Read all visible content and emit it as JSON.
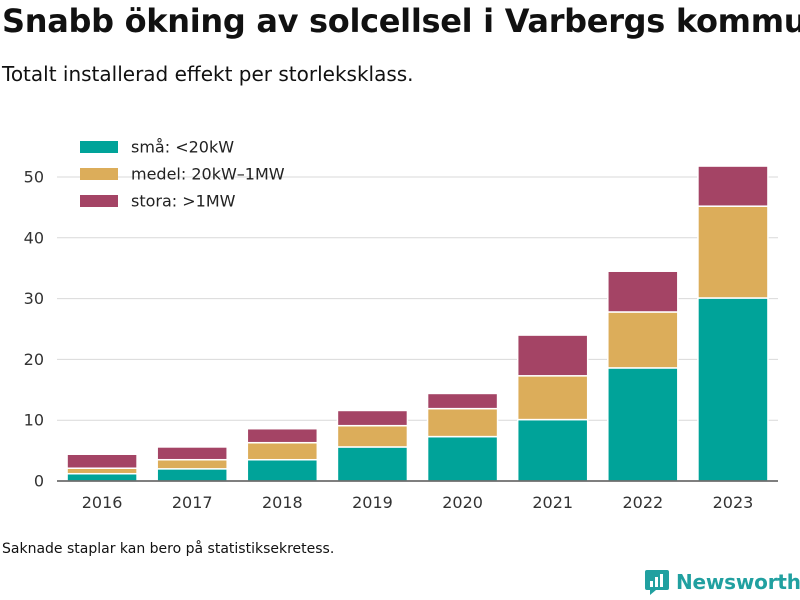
{
  "title": "Snabb ökning av solcellsel i Varbergs kommun",
  "subtitle": "Totalt installerad effekt per storleksklass.",
  "footnote": "Saknade staplar kan bero på statistiksekretess.",
  "brand": {
    "name": "Newsworthy",
    "color": "#21a0a0",
    "icon": "newsworthy-logo-icon"
  },
  "chart_data": {
    "type": "bar",
    "stacked": true,
    "categories": [
      "2016",
      "2017",
      "2018",
      "2019",
      "2020",
      "2021",
      "2022",
      "2023"
    ],
    "series": [
      {
        "name": "små: <20kW",
        "color": "#00a399",
        "values": [
          1.2,
          2.0,
          3.5,
          5.6,
          7.3,
          10.1,
          18.6,
          30.1
        ]
      },
      {
        "name": "medel: 20kW–1MW",
        "color": "#dcad5a",
        "values": [
          0.9,
          1.5,
          2.8,
          3.5,
          4.6,
          7.2,
          9.2,
          15.1
        ]
      },
      {
        "name": "stora: >1MW",
        "color": "#a44465",
        "values": [
          2.3,
          2.1,
          2.3,
          2.5,
          2.5,
          6.7,
          6.7,
          6.6
        ]
      }
    ],
    "xlabel": "",
    "ylabel": "",
    "ylim": [
      0,
      50
    ],
    "yticks": [
      0,
      10,
      20,
      30,
      40,
      50
    ],
    "grid": true,
    "legend_position": "top-left"
  }
}
